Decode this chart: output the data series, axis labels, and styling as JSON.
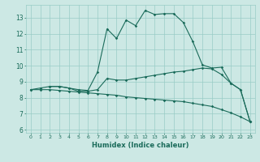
{
  "xlabel": "Humidex (Indice chaleur)",
  "bg_color": "#cce8e4",
  "grid_color": "#99ccc6",
  "line_color": "#1a6b5a",
  "xlim": [
    -0.5,
    23.5
  ],
  "ylim": [
    5.8,
    13.8
  ],
  "yticks": [
    6,
    7,
    8,
    9,
    10,
    11,
    12,
    13
  ],
  "xticks": [
    0,
    1,
    2,
    3,
    4,
    5,
    6,
    7,
    8,
    9,
    10,
    11,
    12,
    13,
    14,
    15,
    16,
    17,
    18,
    19,
    20,
    21,
    22,
    23
  ],
  "curve1_x": [
    0,
    1,
    2,
    3,
    4,
    5,
    6,
    7,
    8,
    9,
    10,
    11,
    12,
    13,
    14,
    15,
    16,
    17,
    18,
    19,
    20,
    21,
    22,
    23
  ],
  "curve1_y": [
    8.5,
    8.6,
    8.7,
    8.7,
    8.6,
    8.4,
    8.4,
    8.5,
    9.2,
    9.1,
    9.1,
    9.2,
    9.3,
    9.4,
    9.5,
    9.6,
    9.65,
    9.75,
    9.85,
    9.8,
    9.45,
    8.9,
    8.5,
    6.5
  ],
  "curve2_x": [
    0,
    1,
    2,
    3,
    4,
    5,
    6,
    7,
    8,
    9,
    10,
    11,
    12,
    13,
    14,
    15,
    16,
    17,
    18,
    19,
    20,
    21,
    22,
    23
  ],
  "curve2_y": [
    8.5,
    8.5,
    8.5,
    8.45,
    8.4,
    8.35,
    8.3,
    8.25,
    8.2,
    8.15,
    8.05,
    8.0,
    7.95,
    7.9,
    7.85,
    7.8,
    7.75,
    7.65,
    7.55,
    7.45,
    7.25,
    7.05,
    6.8,
    6.5
  ],
  "curve3_x": [
    2,
    3,
    4,
    5,
    6,
    7,
    8,
    9,
    10,
    11,
    12,
    13,
    14,
    15,
    16,
    17,
    18,
    19,
    20,
    21,
    22,
    23
  ],
  "curve3_y": [
    8.7,
    8.7,
    8.6,
    8.5,
    8.45,
    9.6,
    12.3,
    11.7,
    12.85,
    12.5,
    13.45,
    13.2,
    13.25,
    13.25,
    12.7,
    11.5,
    10.05,
    9.85,
    9.9,
    8.9,
    8.5,
    6.5
  ]
}
